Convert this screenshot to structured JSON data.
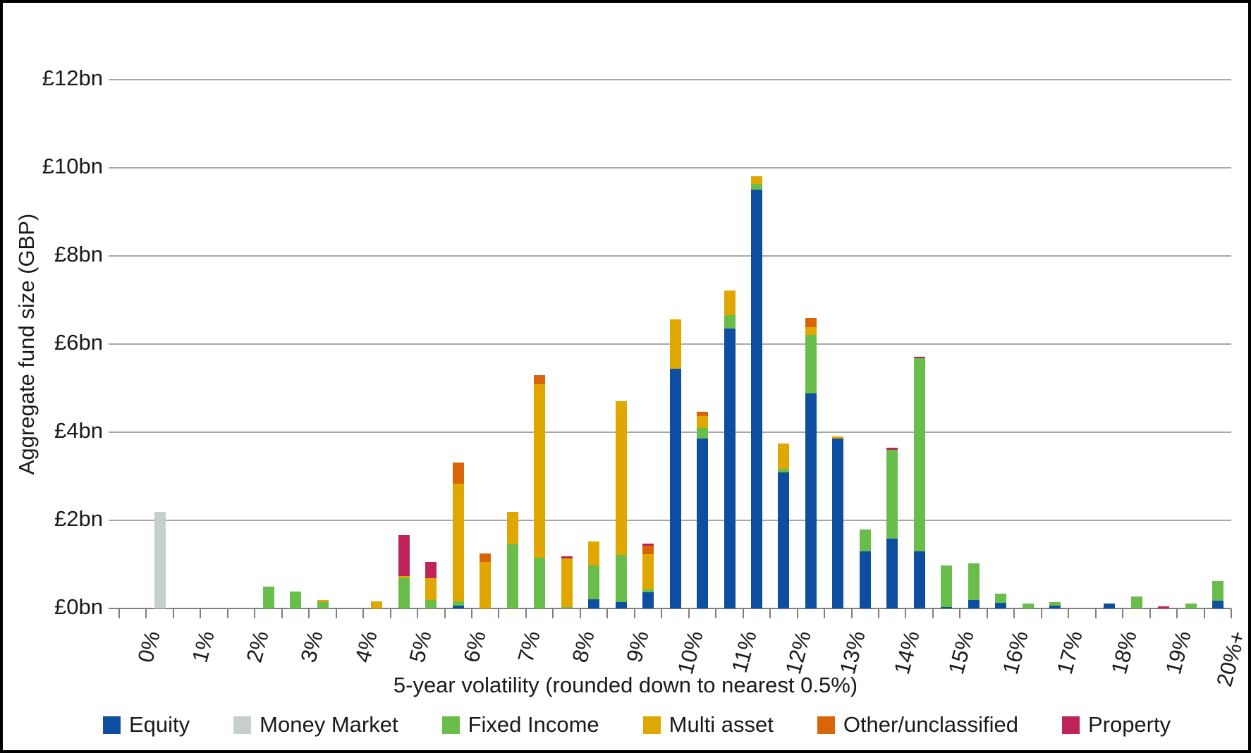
{
  "chart": {
    "x_title": "5-year volatility (rounded down to nearest 0.5%)",
    "y_title": "Aggregate fund size (GBP)",
    "y_tick_labels": [
      "£0bn",
      "£2bn",
      "£4bn",
      "£6bn",
      "£8bn",
      "£10bn",
      "£12bn"
    ],
    "x_tick_labels": [
      "0%",
      "1%",
      "2%",
      "3%",
      "4%",
      "5%",
      "6%",
      "7%",
      "8%",
      "9%",
      "10%",
      "11%",
      "12%",
      "13%",
      "14%",
      "15%",
      "16%",
      "17%",
      "18%",
      "19%",
      "20%+"
    ]
  },
  "legend": [
    {
      "label": "Equity",
      "color": "#0E4EA1"
    },
    {
      "label": "Money Market",
      "color": "#C6CFC9"
    },
    {
      "label": "Fixed Income",
      "color": "#69BD4A"
    },
    {
      "label": "Multi asset",
      "color": "#DFA700"
    },
    {
      "label": "Other/unclassified",
      "color": "#D96508"
    },
    {
      "label": "Property",
      "color": "#BE2459"
    }
  ],
  "chart_data": {
    "type": "bar",
    "stacked": true,
    "title": "",
    "xlabel": "5-year volatility (rounded down to nearest 0.5%)",
    "ylabel": "Aggregate fund size (GBP)",
    "y_unit": "£bn",
    "ylim": [
      0,
      12
    ],
    "y_gridline_step": 2,
    "legend_position": "bottom",
    "categories": [
      "0%",
      "0.5%",
      "1%",
      "1.5%",
      "2%",
      "2.5%",
      "3%",
      "3.5%",
      "4%",
      "4.5%",
      "5%",
      "5.5%",
      "6%",
      "6.5%",
      "7%",
      "7.5%",
      "8%",
      "8.5%",
      "9%",
      "9.5%",
      "10%",
      "10.5%",
      "11%",
      "11.5%",
      "12%",
      "12.5%",
      "13%",
      "13.5%",
      "14%",
      "14.5%",
      "15%",
      "15.5%",
      "16%",
      "16.5%",
      "17%",
      "17.5%",
      "18%",
      "18.5%",
      "19%",
      "19.5%",
      "20%+"
    ],
    "series": [
      {
        "name": "Equity",
        "color": "#0E4EA1",
        "values": [
          0,
          0,
          0,
          0,
          0,
          0,
          0,
          0,
          0,
          0,
          0,
          0,
          0.07,
          0,
          0,
          0,
          0,
          0.21,
          0.15,
          0.37,
          5.44,
          3.86,
          6.36,
          9.5,
          3.09,
          4.88,
          3.86,
          1.3,
          1.58,
          1.3,
          0.03,
          0.2,
          0.13,
          0,
          0.06,
          0,
          0.12,
          0,
          0,
          0,
          0.17
        ]
      },
      {
        "name": "Money Market",
        "color": "#C6CFC9",
        "values": [
          0,
          2.2,
          0,
          0,
          0,
          0,
          0,
          0,
          0,
          0,
          0,
          0,
          0,
          0,
          0,
          0,
          0,
          0,
          0,
          0,
          0,
          0,
          0,
          0,
          0,
          0,
          0,
          0,
          0,
          0,
          0,
          0,
          0,
          0,
          0,
          0,
          0,
          0,
          0,
          0,
          0
        ]
      },
      {
        "name": "Fixed Income",
        "color": "#69BD4A",
        "values": [
          0,
          0,
          0,
          0,
          0,
          0.5,
          0.38,
          0.15,
          0,
          0,
          0.69,
          0.19,
          0.09,
          0,
          1.45,
          1.16,
          0.04,
          0.77,
          1.06,
          0.06,
          0,
          0.24,
          0.29,
          0.13,
          0.08,
          1.33,
          0,
          0.49,
          2.02,
          4.38,
          0.94,
          0.82,
          0.21,
          0.12,
          0.08,
          0,
          0,
          0.27,
          0,
          0.12,
          0.46
        ]
      },
      {
        "name": "Multi asset",
        "color": "#DFA700",
        "values": [
          0,
          0,
          0,
          0,
          0,
          0,
          0,
          0.04,
          0,
          0.16,
          0.05,
          0.5,
          2.67,
          1.06,
          0.75,
          3.93,
          1.1,
          0.54,
          3.49,
          0.8,
          1.12,
          0.27,
          0.56,
          0.18,
          0.57,
          0.18,
          0.05,
          0,
          0,
          0,
          0,
          0,
          0,
          0,
          0,
          0,
          0,
          0,
          0,
          0,
          0
        ]
      },
      {
        "name": "Other/unclassified",
        "color": "#D96508",
        "values": [
          0,
          0,
          0,
          0,
          0,
          0,
          0,
          0,
          0,
          0,
          0,
          0,
          0.48,
          0.19,
          0,
          0.21,
          0,
          0,
          0,
          0.19,
          0,
          0.1,
          0,
          0,
          0,
          0.2,
          0,
          0,
          0,
          0,
          0,
          0,
          0,
          0,
          0,
          0,
          0,
          0,
          0,
          0,
          0
        ]
      },
      {
        "name": "Property",
        "color": "#BE2459",
        "values": [
          0,
          0,
          0,
          0,
          0,
          0,
          0,
          0,
          0,
          0,
          0.93,
          0.37,
          0,
          0,
          0,
          0,
          0.05,
          0,
          0,
          0.05,
          0,
          0,
          0,
          0,
          0,
          0,
          0,
          0,
          0.05,
          0.04,
          0,
          0,
          0,
          0,
          0,
          0,
          0,
          0,
          0.05,
          0,
          0
        ]
      }
    ]
  }
}
